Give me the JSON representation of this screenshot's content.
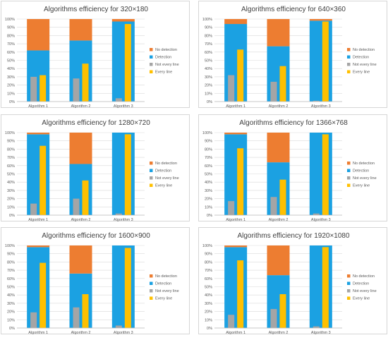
{
  "chart_data": [
    {
      "type": "bar",
      "title": "Algorithms efficiency for 320×180",
      "categories": [
        "Algorithm 1",
        "Algorithm 2",
        "Algorithm 3"
      ],
      "ylim": [
        0,
        100
      ],
      "yticks": [
        "0%",
        "10%",
        "20%",
        "30%",
        "40%",
        "50%",
        "60%",
        "70%",
        "80%",
        "90%",
        "100%"
      ],
      "grid": true,
      "legend_position": "right",
      "series": [
        {
          "name": "No detection",
          "color": "#ED7D31",
          "values": [
            38,
            26,
            3
          ]
        },
        {
          "name": "Detection",
          "color": "#1BA1E2",
          "values": [
            62,
            74,
            97
          ]
        },
        {
          "name": "Not every line",
          "color": "#A5A5A5",
          "values": [
            30,
            28,
            4
          ]
        },
        {
          "name": "Every line",
          "color": "#FFC000",
          "values": [
            32,
            46,
            94
          ]
        }
      ]
    },
    {
      "type": "bar",
      "title": "Algorithms efficiency for 640×360",
      "categories": [
        "Algorithm 1",
        "Algorithm 2",
        "Algorithm 3"
      ],
      "ylim": [
        0,
        100
      ],
      "yticks": [
        "0%",
        "10%",
        "20%",
        "30%",
        "40%",
        "50%",
        "60%",
        "70%",
        "80%",
        "90%",
        "100%"
      ],
      "grid": true,
      "legend_position": "right",
      "series": [
        {
          "name": "No detection",
          "color": "#ED7D31",
          "values": [
            6,
            33,
            2
          ]
        },
        {
          "name": "Detection",
          "color": "#1BA1E2",
          "values": [
            94,
            67,
            98
          ]
        },
        {
          "name": "Not every line",
          "color": "#A5A5A5",
          "values": [
            32,
            24,
            1
          ]
        },
        {
          "name": "Every line",
          "color": "#FFC000",
          "values": [
            63,
            43,
            97
          ]
        }
      ]
    },
    {
      "type": "bar",
      "title": "Algorithms efficiency for 1280×720",
      "categories": [
        "Algorithm 1",
        "Algorithm 2",
        "Algorithm 3"
      ],
      "ylim": [
        0,
        100
      ],
      "yticks": [
        "0%",
        "10%",
        "20%",
        "30%",
        "40%",
        "50%",
        "60%",
        "70%",
        "80%",
        "90%",
        "100%"
      ],
      "grid": true,
      "legend_position": "right",
      "series": [
        {
          "name": "No detection",
          "color": "#ED7D31",
          "values": [
            2,
            38,
            0
          ]
        },
        {
          "name": "Detection",
          "color": "#1BA1E2",
          "values": [
            98,
            62,
            100
          ]
        },
        {
          "name": "Not every line",
          "color": "#A5A5A5",
          "values": [
            14,
            20,
            2
          ]
        },
        {
          "name": "Every line",
          "color": "#FFC000",
          "values": [
            84,
            42,
            98
          ]
        }
      ]
    },
    {
      "type": "bar",
      "title": "Algorithms efficiency for 1366×768",
      "categories": [
        "Algorithm 1",
        "Algorithm 2",
        "Algorithm 3"
      ],
      "ylim": [
        0,
        100
      ],
      "yticks": [
        "0%",
        "10%",
        "20%",
        "30%",
        "40%",
        "50%",
        "60%",
        "70%",
        "80%",
        "90%",
        "100%"
      ],
      "grid": true,
      "legend_position": "right",
      "series": [
        {
          "name": "No detection",
          "color": "#ED7D31",
          "values": [
            2,
            36,
            0
          ]
        },
        {
          "name": "Detection",
          "color": "#1BA1E2",
          "values": [
            98,
            64,
            100
          ]
        },
        {
          "name": "Not every line",
          "color": "#A5A5A5",
          "values": [
            17,
            22,
            2
          ]
        },
        {
          "name": "Every line",
          "color": "#FFC000",
          "values": [
            81,
            43,
            98
          ]
        }
      ]
    },
    {
      "type": "bar",
      "title": "Algorithms efficiency for 1600×900",
      "categories": [
        "Algorithm 1",
        "Algorithm 2",
        "Algorithm 3"
      ],
      "ylim": [
        0,
        100
      ],
      "yticks": [
        "0%",
        "10%",
        "20%",
        "30%",
        "40%",
        "50%",
        "60%",
        "70%",
        "80%",
        "90%",
        "100%"
      ],
      "grid": true,
      "legend_position": "right",
      "series": [
        {
          "name": "No detection",
          "color": "#ED7D31",
          "values": [
            2,
            34,
            0
          ]
        },
        {
          "name": "Detection",
          "color": "#1BA1E2",
          "values": [
            98,
            66,
            100
          ]
        },
        {
          "name": "Not every line",
          "color": "#A5A5A5",
          "values": [
            19,
            25,
            3
          ]
        },
        {
          "name": "Every line",
          "color": "#FFC000",
          "values": [
            79,
            41,
            97
          ]
        }
      ]
    },
    {
      "type": "bar",
      "title": "Algorithms efficiency for 1920×1080",
      "categories": [
        "Algorithm 1",
        "Algorithm 2",
        "Algorithm 3"
      ],
      "ylim": [
        0,
        100
      ],
      "yticks": [
        "0%",
        "10%",
        "20%",
        "30%",
        "40%",
        "50%",
        "60%",
        "70%",
        "80%",
        "90%",
        "100%"
      ],
      "grid": true,
      "legend_position": "right",
      "series": [
        {
          "name": "No detection",
          "color": "#ED7D31",
          "values": [
            2,
            36,
            0
          ]
        },
        {
          "name": "Detection",
          "color": "#1BA1E2",
          "values": [
            98,
            64,
            100
          ]
        },
        {
          "name": "Not every line",
          "color": "#A5A5A5",
          "values": [
            16,
            23,
            2
          ]
        },
        {
          "name": "Every line",
          "color": "#FFC000",
          "values": [
            82,
            41,
            98
          ]
        }
      ]
    }
  ]
}
